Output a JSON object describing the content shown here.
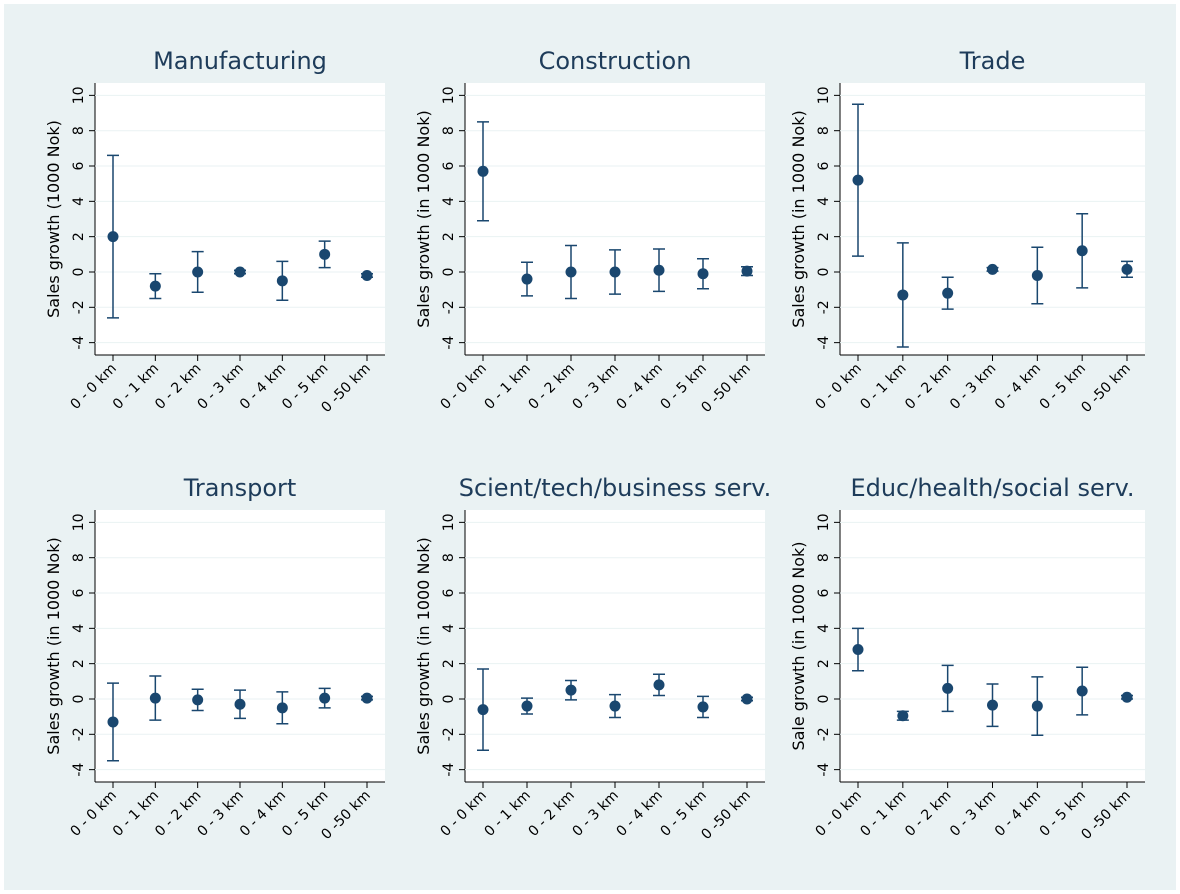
{
  "chart_data": [
    {
      "type": "errorbar",
      "title": "Manufacturing",
      "y_label": "Sales growth (1000 Nok)",
      "categories": [
        "0 - 0 km",
        "0 - 1 km",
        "0 - 2 km",
        "0 - 3 km",
        "0 - 4 km",
        "0 - 5 km",
        "0 -50 km"
      ],
      "values": [
        2.0,
        -0.8,
        0.0,
        0.0,
        -0.5,
        1.0,
        -0.2
      ],
      "errors": [
        4.6,
        0.7,
        1.15,
        0.1,
        1.1,
        0.75,
        0.1
      ],
      "color": "#1a476f",
      "ylim": [
        -4.7,
        10.7
      ],
      "yticks": [
        -4,
        -2,
        0,
        2,
        4,
        6,
        8,
        10
      ],
      "grid": true
    },
    {
      "type": "errorbar",
      "title": "Construction",
      "y_label": "Sales growth (in 1000 Nok)",
      "categories": [
        "0 - 0 km",
        "0 - 1 km",
        "0 - 2 km",
        "0 - 3 km",
        "0 - 4 km",
        "0 - 5 km",
        "0 -50 km"
      ],
      "values": [
        5.7,
        -0.4,
        0.0,
        0.0,
        0.1,
        -0.1,
        0.05
      ],
      "errors": [
        2.8,
        0.95,
        1.5,
        1.25,
        1.2,
        0.85,
        0.25
      ],
      "color": "#1a476f",
      "ylim": [
        -4.7,
        10.7
      ],
      "yticks": [
        -4,
        -2,
        0,
        2,
        4,
        6,
        8,
        10
      ],
      "grid": true
    },
    {
      "type": "errorbar",
      "title": "Trade",
      "y_label": "Sales growth (in 1000 Nok)",
      "categories": [
        "0 - 0 km",
        "0 - 1 km",
        "0 - 2 km",
        "0 - 3 km",
        "0 - 4 km",
        "0 - 5 km",
        "0 -50 km"
      ],
      "values": [
        5.2,
        -1.3,
        -1.2,
        0.15,
        -0.2,
        1.2,
        0.15
      ],
      "errors": [
        4.3,
        2.95,
        0.9,
        0.1,
        1.6,
        2.1,
        0.45
      ],
      "color": "#1a476f",
      "ylim": [
        -4.7,
        10.7
      ],
      "yticks": [
        -4,
        -2,
        0,
        2,
        4,
        6,
        8,
        10
      ],
      "grid": true
    },
    {
      "type": "errorbar",
      "title": "Transport",
      "y_label": "Sales growth (in 1000 Nok)",
      "categories": [
        "0 - 0 km",
        "0 - 1 km",
        "0 - 2 km",
        "0 - 3 km",
        "0 - 4 km",
        "0 - 5 km",
        "0 -50 km"
      ],
      "values": [
        -1.3,
        0.05,
        -0.05,
        -0.3,
        -0.5,
        0.05,
        0.05
      ],
      "errors": [
        2.2,
        1.25,
        0.6,
        0.8,
        0.9,
        0.55,
        0.1
      ],
      "color": "#1a476f",
      "ylim": [
        -4.7,
        10.7
      ],
      "yticks": [
        -4,
        -2,
        0,
        2,
        4,
        6,
        8,
        10
      ],
      "grid": true
    },
    {
      "type": "errorbar",
      "title": "Scient/tech/business serv.",
      "y_label": "Sales growth (in 1000 Nok)",
      "categories": [
        "0 - 0 km",
        "0 - 1 km",
        "0 - 2 km",
        "0 - 3 km",
        "0 - 4 km",
        "0 - 5 km",
        "0 -50 km"
      ],
      "values": [
        -0.6,
        -0.4,
        0.5,
        -0.4,
        0.8,
        -0.45,
        0.0
      ],
      "errors": [
        2.3,
        0.45,
        0.55,
        0.65,
        0.6,
        0.6,
        0.1
      ],
      "color": "#1a476f",
      "ylim": [
        -4.7,
        10.7
      ],
      "yticks": [
        -4,
        -2,
        0,
        2,
        4,
        6,
        8,
        10
      ],
      "grid": true
    },
    {
      "type": "errorbar",
      "title": "Educ/health/social serv.",
      "y_label": "Sale growth (in 1000 Nok)",
      "categories": [
        "0 - 0 km",
        "0 - 1 km",
        "0 - 2 km",
        "0 - 3 km",
        "0 - 4 km",
        "0 - 5 km",
        "0 -50 km"
      ],
      "values": [
        2.8,
        -0.95,
        0.6,
        -0.35,
        -0.4,
        0.45,
        0.1
      ],
      "errors": [
        1.2,
        0.25,
        1.3,
        1.2,
        1.65,
        1.35,
        0.1
      ],
      "color": "#1a476f",
      "ylim": [
        -4.7,
        10.7
      ],
      "yticks": [
        -4,
        -2,
        0,
        2,
        4,
        6,
        8,
        10
      ],
      "grid": true
    }
  ]
}
